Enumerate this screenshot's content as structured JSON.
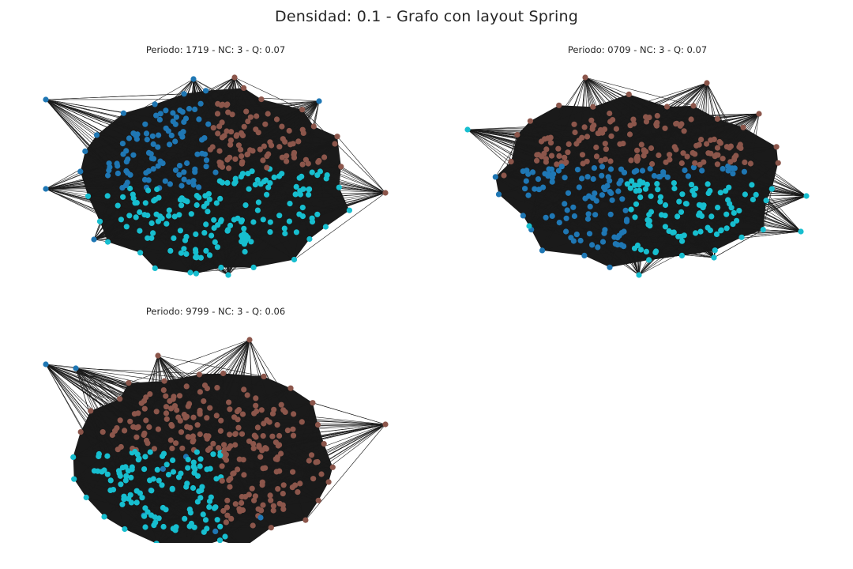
{
  "figure": {
    "title": "Densidad: 0.1 - Grafo con layout Spring"
  },
  "colors": {
    "edge": "#1a1a1a",
    "community_blue": "#1f77b4",
    "community_brown": "#8c564b",
    "community_cyan": "#17becf",
    "background": "#ffffff"
  },
  "chart_data": [
    {
      "type": "network",
      "title": "Periodo: 1719 - NC: 3 - Q: 0.07",
      "layout": "spring",
      "periodo": "1719",
      "num_communities": 3,
      "modularity": 0.07,
      "community_colors": [
        "#1f77b4",
        "#8c564b",
        "#17becf"
      ],
      "axes": "off"
    },
    {
      "type": "network",
      "title": "Periodo: 0709 - NC: 3 - Q: 0.07",
      "layout": "spring",
      "periodo": "0709",
      "num_communities": 3,
      "modularity": 0.07,
      "community_colors": [
        "#8c564b",
        "#1f77b4",
        "#17becf"
      ],
      "axes": "off"
    },
    {
      "type": "network",
      "title": "Periodo: 9799 - NC: 3 - Q: 0.06",
      "layout": "spring",
      "periodo": "9799",
      "num_communities": 3,
      "modularity": 0.06,
      "community_colors": [
        "#8c564b",
        "#17becf",
        "#1f77b4"
      ],
      "axes": "off"
    }
  ]
}
